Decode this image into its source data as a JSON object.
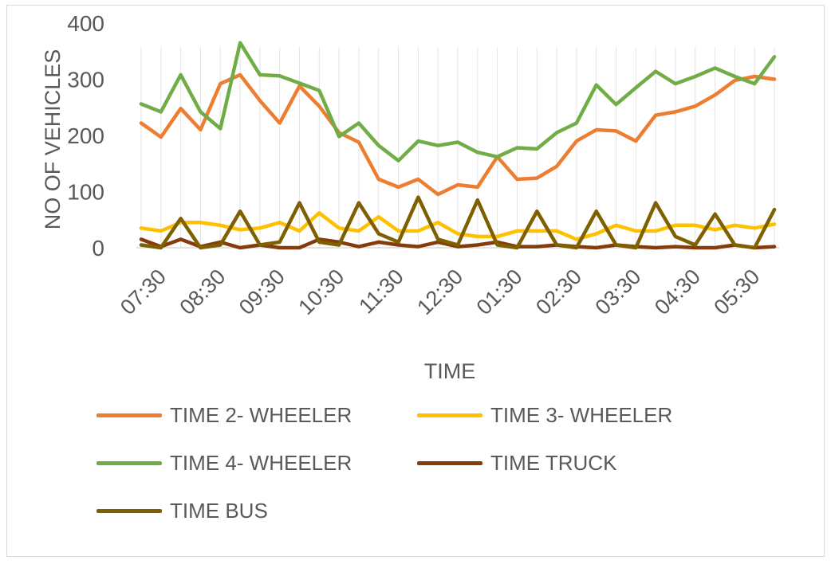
{
  "chart_data": {
    "type": "line",
    "xlabel": "TIME",
    "ylabel": "NO OF VEHICLES",
    "ylim": [
      0,
      400
    ],
    "yticks": [
      0,
      100,
      200,
      300,
      400
    ],
    "grid": "vertical",
    "legend": "bottom",
    "tick_labels": [
      "07:30",
      "08:30",
      "09:30",
      "10:30",
      "11:30",
      "12:30",
      "01:30",
      "02:30",
      "03:30",
      "04:30",
      "05:30"
    ],
    "series": [
      {
        "name": "TIME 2- WHEELER",
        "color": "#ED7D31",
        "values": [
          222,
          197,
          248,
          210,
          292,
          308,
          262,
          222,
          288,
          252,
          205,
          188,
          122,
          108,
          122,
          95,
          112,
          108,
          162,
          122,
          124,
          145,
          190,
          210,
          208,
          190,
          236,
          242,
          252,
          272,
          298,
          305,
          300
        ]
      },
      {
        "name": "TIME 3- WHEELER",
        "color": "#FFC000",
        "values": [
          35,
          30,
          45,
          45,
          40,
          32,
          35,
          45,
          30,
          62,
          35,
          30,
          55,
          30,
          30,
          45,
          25,
          20,
          20,
          30,
          30,
          30,
          15,
          25,
          40,
          30,
          30,
          40,
          40,
          32,
          40,
          35,
          42
        ]
      },
      {
        "name": "TIME 4- WHEELER",
        "color": "#70AD47",
        "values": [
          256,
          242,
          308,
          242,
          212,
          365,
          308,
          306,
          293,
          280,
          198,
          222,
          182,
          155,
          190,
          182,
          188,
          170,
          162,
          178,
          176,
          205,
          222,
          290,
          255,
          285,
          314,
          292,
          305,
          320,
          305,
          292,
          340
        ]
      },
      {
        "name": "TIME TRUCK",
        "color": "#843C0C",
        "values": [
          15,
          2,
          15,
          2,
          10,
          0,
          5,
          0,
          0,
          15,
          10,
          2,
          10,
          5,
          2,
          10,
          2,
          5,
          10,
          2,
          2,
          5,
          2,
          0,
          5,
          2,
          0,
          2,
          0,
          0,
          5,
          0,
          2
        ]
      },
      {
        "name": "TIME BUS",
        "color": "#7F6000",
        "values": [
          5,
          0,
          52,
          0,
          5,
          65,
          5,
          10,
          80,
          10,
          5,
          80,
          25,
          10,
          90,
          15,
          5,
          85,
          5,
          0,
          65,
          5,
          0,
          65,
          5,
          0,
          80,
          20,
          5,
          60,
          5,
          0,
          68
        ]
      }
    ]
  }
}
